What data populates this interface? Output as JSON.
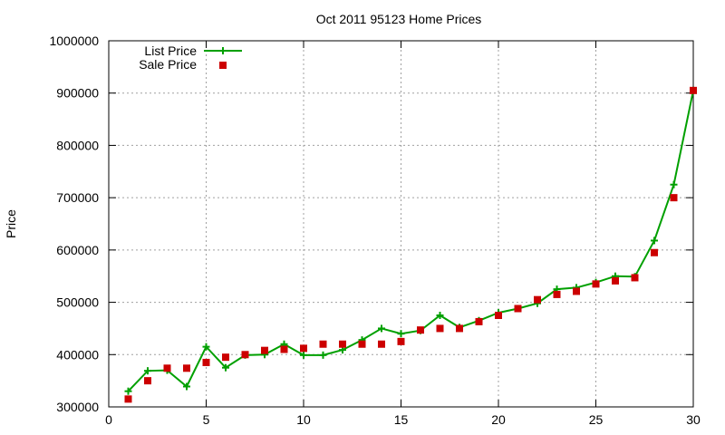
{
  "chart_data": {
    "type": "line",
    "title": "Oct 2011 95123 Home Prices",
    "xlabel": "",
    "ylabel": "Price",
    "xlim": [
      0,
      30
    ],
    "ylim": [
      300000,
      1000000
    ],
    "xticks": [
      0,
      5,
      10,
      15,
      20,
      25,
      30
    ],
    "yticks": [
      300000,
      400000,
      500000,
      600000,
      700000,
      800000,
      900000,
      1000000
    ],
    "grid": true,
    "legend_position": "top-left",
    "series": [
      {
        "name": "List Price",
        "kind": "line-with-plus-markers",
        "color": "#00a000",
        "x": [
          1,
          2,
          3,
          4,
          5,
          6,
          7,
          8,
          9,
          10,
          11,
          12,
          13,
          14,
          15,
          16,
          17,
          18,
          19,
          20,
          21,
          22,
          23,
          24,
          25,
          26,
          27,
          28,
          29,
          30
        ],
        "values": [
          330000,
          369000,
          370000,
          339000,
          415000,
          375000,
          399000,
          400000,
          420000,
          399000,
          399000,
          409000,
          428000,
          450000,
          440000,
          446000,
          475000,
          452000,
          465000,
          480000,
          488000,
          498000,
          525000,
          528000,
          538000,
          550000,
          549000,
          618000,
          725000,
          905000
        ]
      },
      {
        "name": "Sale Price",
        "kind": "square-markers",
        "color": "#cc0000",
        "x": [
          1,
          2,
          3,
          4,
          5,
          6,
          7,
          8,
          9,
          10,
          11,
          12,
          13,
          14,
          15,
          16,
          17,
          18,
          19,
          20,
          21,
          22,
          23,
          24,
          25,
          26,
          27,
          28,
          29,
          30
        ],
        "values": [
          315000,
          350000,
          374000,
          374000,
          385000,
          395000,
          400000,
          408000,
          410000,
          412000,
          420000,
          420000,
          420000,
          420000,
          425000,
          447000,
          450000,
          450000,
          463000,
          475000,
          488000,
          505000,
          515000,
          521000,
          535000,
          541000,
          547000,
          595000,
          700000,
          905000
        ]
      }
    ]
  }
}
